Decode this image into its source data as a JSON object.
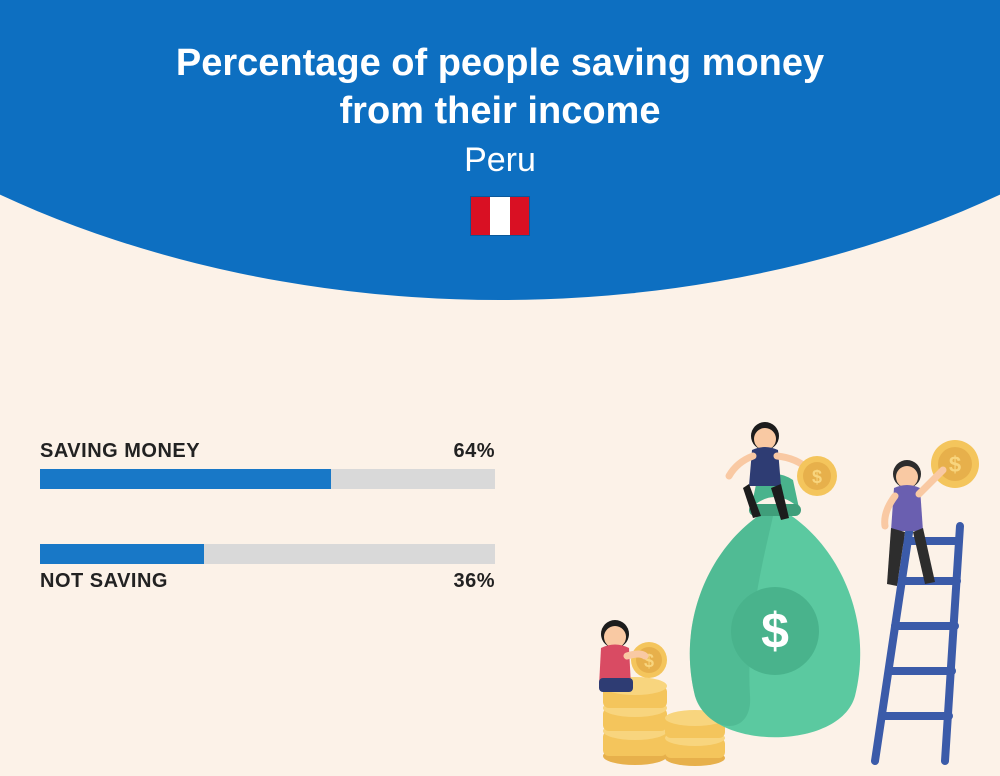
{
  "colors": {
    "page_bg": "#fcf2e8",
    "header_bg": "#0d6fc1",
    "bar_track": "#d9d9d9",
    "bar_fill": "#1878c7",
    "text_dark": "#262626",
    "flag_red": "#d91023",
    "flag_white": "#ffffff",
    "coin_gold": "#f4c55c",
    "coin_dark": "#e7b04b",
    "bag_green": "#5bc9a0",
    "bag_dark": "#49b38c",
    "ladder_blue": "#3b5ba9",
    "person1_skin": "#f9c9a3",
    "person1_top": "#2e3c73",
    "person1_bottom": "#1c1c1c",
    "person2_skin": "#f9c9a3",
    "person2_top": "#6a5fb0",
    "person2_bottom": "#2d2d2d",
    "person3_skin": "#f9c9a3",
    "person3_top": "#d94b63",
    "person3_bottom": "#2e3c73"
  },
  "header": {
    "title_line1": "Percentage of people saving money",
    "title_line2": "from their income",
    "country": "Peru",
    "title_fontsize": 38,
    "country_fontsize": 34
  },
  "bars": [
    {
      "label": "SAVING MONEY",
      "value": 64,
      "display": "64%",
      "label_position": "above"
    },
    {
      "label": "NOT SAVING",
      "value": 36,
      "display": "36%",
      "label_position": "below"
    }
  ],
  "bar_style": {
    "track_height": 20,
    "label_fontsize": 20,
    "label_weight": 700
  }
}
